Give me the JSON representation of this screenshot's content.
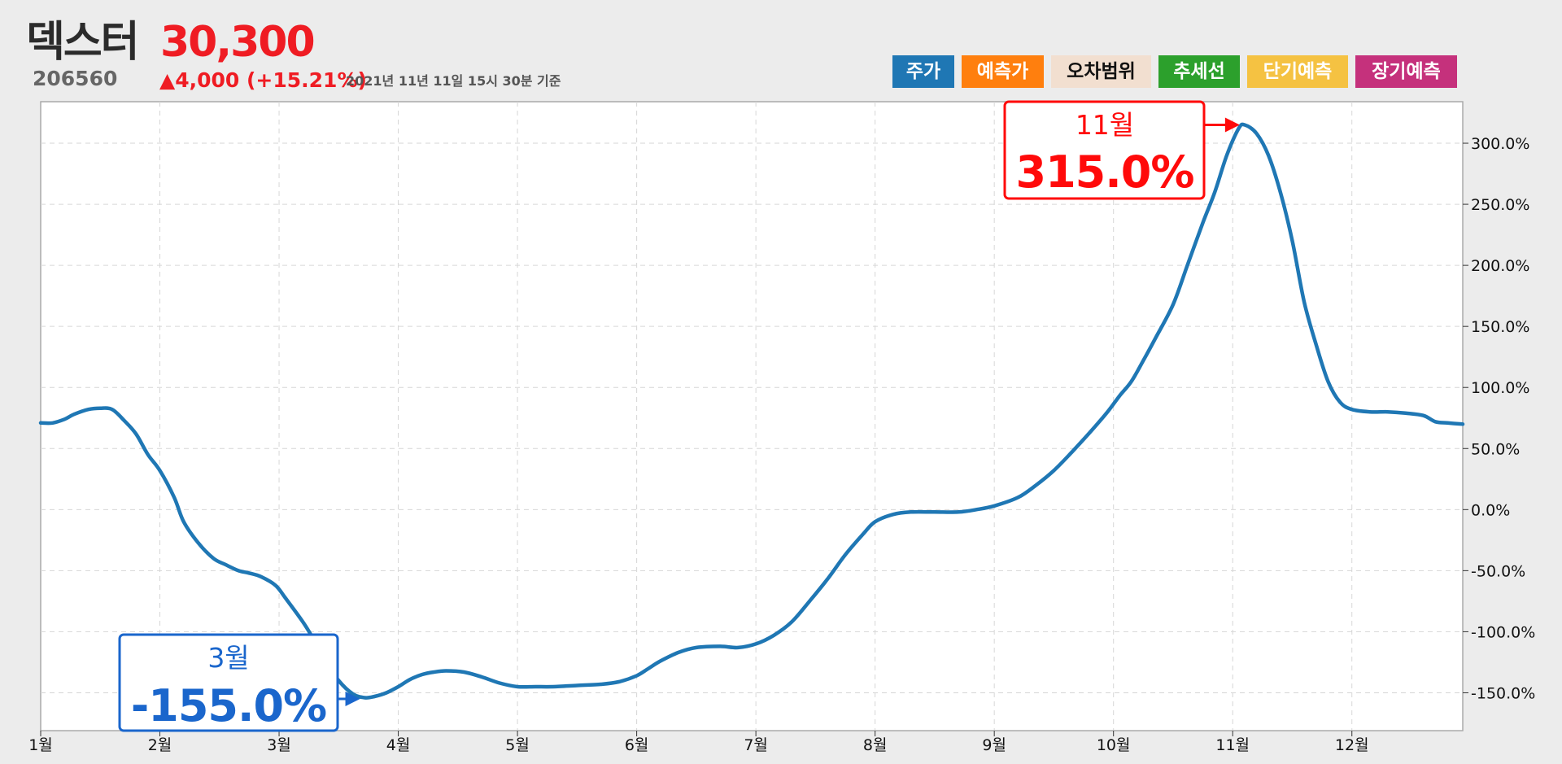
{
  "header": {
    "name": "덱스터",
    "code": "206560",
    "price": "30,300",
    "change": "▲4,000 (+15.21%)",
    "timestamp": "2021년 11년 11일 15시 30분 기준"
  },
  "legend": [
    {
      "label": "주가",
      "bg": "#1f77b4",
      "color": "#ffffff"
    },
    {
      "label": "예측가",
      "bg": "#ff7f0e",
      "color": "#ffffff"
    },
    {
      "label": "오차범위",
      "bg": "#f2dfd0",
      "color": "#111111"
    },
    {
      "label": "추세선",
      "bg": "#2ca02c",
      "color": "#ffffff"
    },
    {
      "label": "단기예측",
      "bg": "#f5c242",
      "color": "#ffffff"
    },
    {
      "label": "장기예측",
      "bg": "#c5317c",
      "color": "#ffffff"
    }
  ],
  "callouts": {
    "max": {
      "month": "11월",
      "value": "315.0%",
      "color": "#ff0a0a"
    },
    "min": {
      "month": "3월",
      "value": "-155.0%",
      "color": "#1a66cc"
    }
  },
  "chart_data": {
    "type": "line",
    "x_unit": "month",
    "x_ticks": [
      "1월",
      "2월",
      "3월",
      "4월",
      "5월",
      "6월",
      "7월",
      "8월",
      "9월",
      "10월",
      "11월",
      "12월"
    ],
    "y_ticks": [
      "300.0%",
      "250.0%",
      "200.0%",
      "150.0%",
      "100.0%",
      "50.0%",
      "0.0%",
      "-50.0%",
      "-100.0%",
      "-150.0%"
    ],
    "y_tick_values": [
      300,
      250,
      200,
      150,
      100,
      50,
      0,
      -50,
      -100,
      -150
    ],
    "ylim": [
      -181,
      334
    ],
    "xlim": [
      1,
      12.93
    ],
    "y_axis_position": "right",
    "grid": true,
    "series": [
      {
        "color": "#1f77b4",
        "points": [
          [
            1.0,
            71
          ],
          [
            1.1,
            71
          ],
          [
            1.2,
            74
          ],
          [
            1.28,
            78
          ],
          [
            1.4,
            82
          ],
          [
            1.5,
            83
          ],
          [
            1.6,
            82
          ],
          [
            1.7,
            73
          ],
          [
            1.8,
            62
          ],
          [
            1.9,
            45
          ],
          [
            2.0,
            32
          ],
          [
            2.12,
            10
          ],
          [
            2.2,
            -10
          ],
          [
            2.32,
            -27
          ],
          [
            2.45,
            -40
          ],
          [
            2.55,
            -45
          ],
          [
            2.66,
            -50
          ],
          [
            2.75,
            -52
          ],
          [
            2.85,
            -55
          ],
          [
            2.97,
            -62
          ],
          [
            3.05,
            -72
          ],
          [
            3.2,
            -92
          ],
          [
            3.3,
            -108
          ],
          [
            3.4,
            -125
          ],
          [
            3.5,
            -140
          ],
          [
            3.62,
            -151
          ],
          [
            3.72,
            -154
          ],
          [
            3.8,
            -153
          ],
          [
            3.9,
            -150
          ],
          [
            4.0,
            -145
          ],
          [
            4.1,
            -139
          ],
          [
            4.2,
            -135
          ],
          [
            4.3,
            -133
          ],
          [
            4.4,
            -132
          ],
          [
            4.55,
            -133
          ],
          [
            4.7,
            -137
          ],
          [
            4.85,
            -142
          ],
          [
            5.0,
            -145
          ],
          [
            5.15,
            -145
          ],
          [
            5.3,
            -145
          ],
          [
            5.5,
            -144
          ],
          [
            5.7,
            -143
          ],
          [
            5.85,
            -141
          ],
          [
            6.0,
            -136
          ],
          [
            6.1,
            -130
          ],
          [
            6.2,
            -124
          ],
          [
            6.35,
            -117
          ],
          [
            6.5,
            -113
          ],
          [
            6.7,
            -112
          ],
          [
            6.85,
            -113
          ],
          [
            7.0,
            -110
          ],
          [
            7.15,
            -103
          ],
          [
            7.3,
            -92
          ],
          [
            7.45,
            -75
          ],
          [
            7.6,
            -57
          ],
          [
            7.75,
            -37
          ],
          [
            7.9,
            -20
          ],
          [
            8.0,
            -10
          ],
          [
            8.15,
            -4
          ],
          [
            8.3,
            -2
          ],
          [
            8.5,
            -2
          ],
          [
            8.7,
            -2
          ],
          [
            8.85,
            0
          ],
          [
            9.0,
            3
          ],
          [
            9.2,
            10
          ],
          [
            9.35,
            20
          ],
          [
            9.5,
            32
          ],
          [
            9.65,
            47
          ],
          [
            9.8,
            63
          ],
          [
            9.95,
            80
          ],
          [
            10.05,
            93
          ],
          [
            10.15,
            105
          ],
          [
            10.25,
            122
          ],
          [
            10.35,
            140
          ],
          [
            10.5,
            168
          ],
          [
            10.62,
            200
          ],
          [
            10.75,
            235
          ],
          [
            10.85,
            260
          ],
          [
            10.95,
            290
          ],
          [
            11.05,
            312
          ],
          [
            11.1,
            315
          ],
          [
            11.2,
            308
          ],
          [
            11.3,
            290
          ],
          [
            11.4,
            260
          ],
          [
            11.5,
            220
          ],
          [
            11.6,
            170
          ],
          [
            11.7,
            135
          ],
          [
            11.8,
            105
          ],
          [
            11.9,
            88
          ],
          [
            12.0,
            82
          ],
          [
            12.15,
            80
          ],
          [
            12.3,
            80
          ],
          [
            12.45,
            79
          ],
          [
            12.6,
            77
          ],
          [
            12.7,
            72
          ],
          [
            12.8,
            71
          ],
          [
            12.93,
            70
          ]
        ]
      }
    ],
    "annotations": [
      {
        "x": 11.1,
        "y": 315.0,
        "label": "11월",
        "value": "315.0%"
      },
      {
        "x": 3.72,
        "y": -155.0,
        "label": "3월",
        "value": "-155.0%"
      }
    ]
  }
}
